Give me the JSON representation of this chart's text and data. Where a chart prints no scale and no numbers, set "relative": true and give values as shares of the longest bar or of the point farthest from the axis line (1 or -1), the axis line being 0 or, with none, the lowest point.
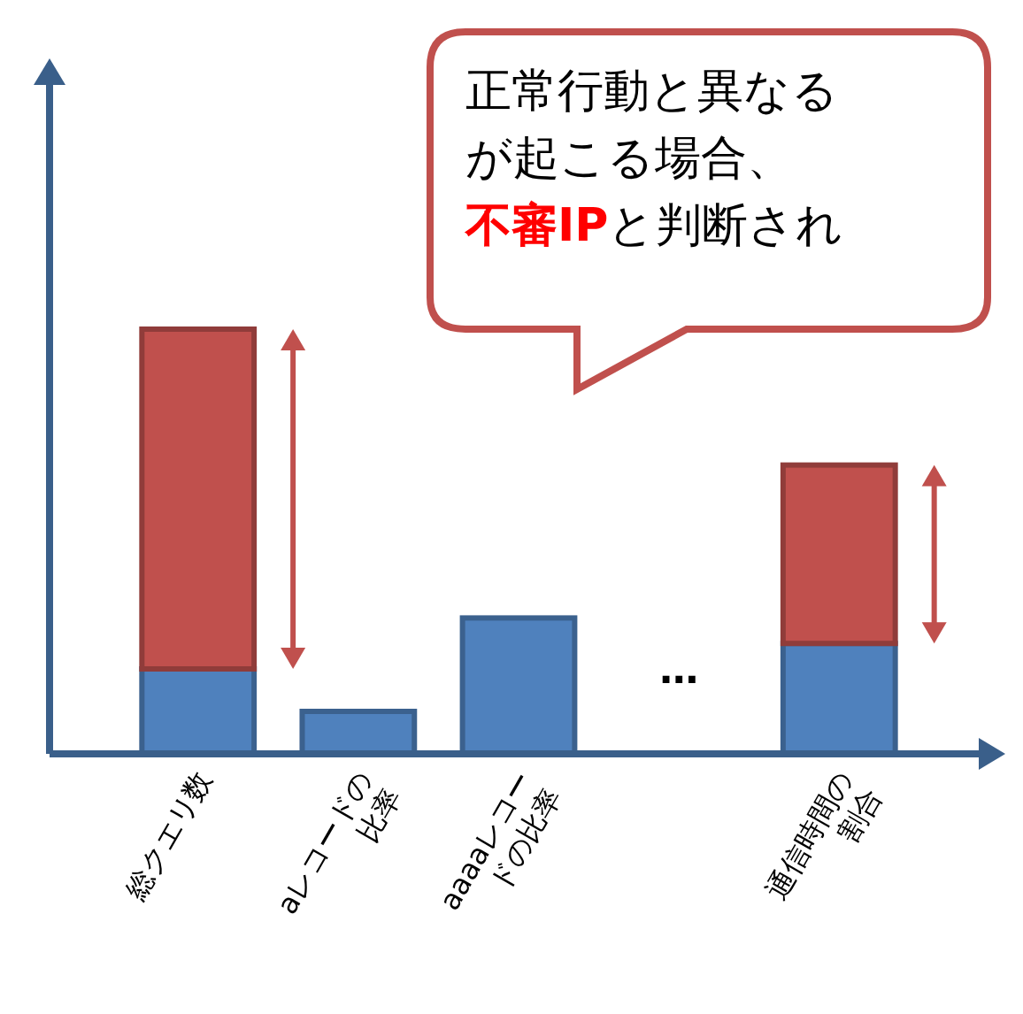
{
  "chart_data": {
    "type": "bar",
    "stacked": true,
    "relative": true,
    "categories": [
      "総クエリ数",
      "aレコードの\n比率",
      "aaaaレコー\nドの比率",
      null,
      "通信時間の\n割合"
    ],
    "series": [
      {
        "color": "#4f81bd",
        "values": [
          0.2,
          0.1,
          0.32,
          null,
          0.26
        ]
      },
      {
        "color": "#c0504d",
        "values": [
          0.8,
          null,
          null,
          null,
          0.42
        ]
      }
    ],
    "annotations": [
      "正常行動と異なる",
      "が起こる場合、",
      "不審IP",
      "と判断され",
      "…"
    ],
    "tick_labels": "x"
  }
}
